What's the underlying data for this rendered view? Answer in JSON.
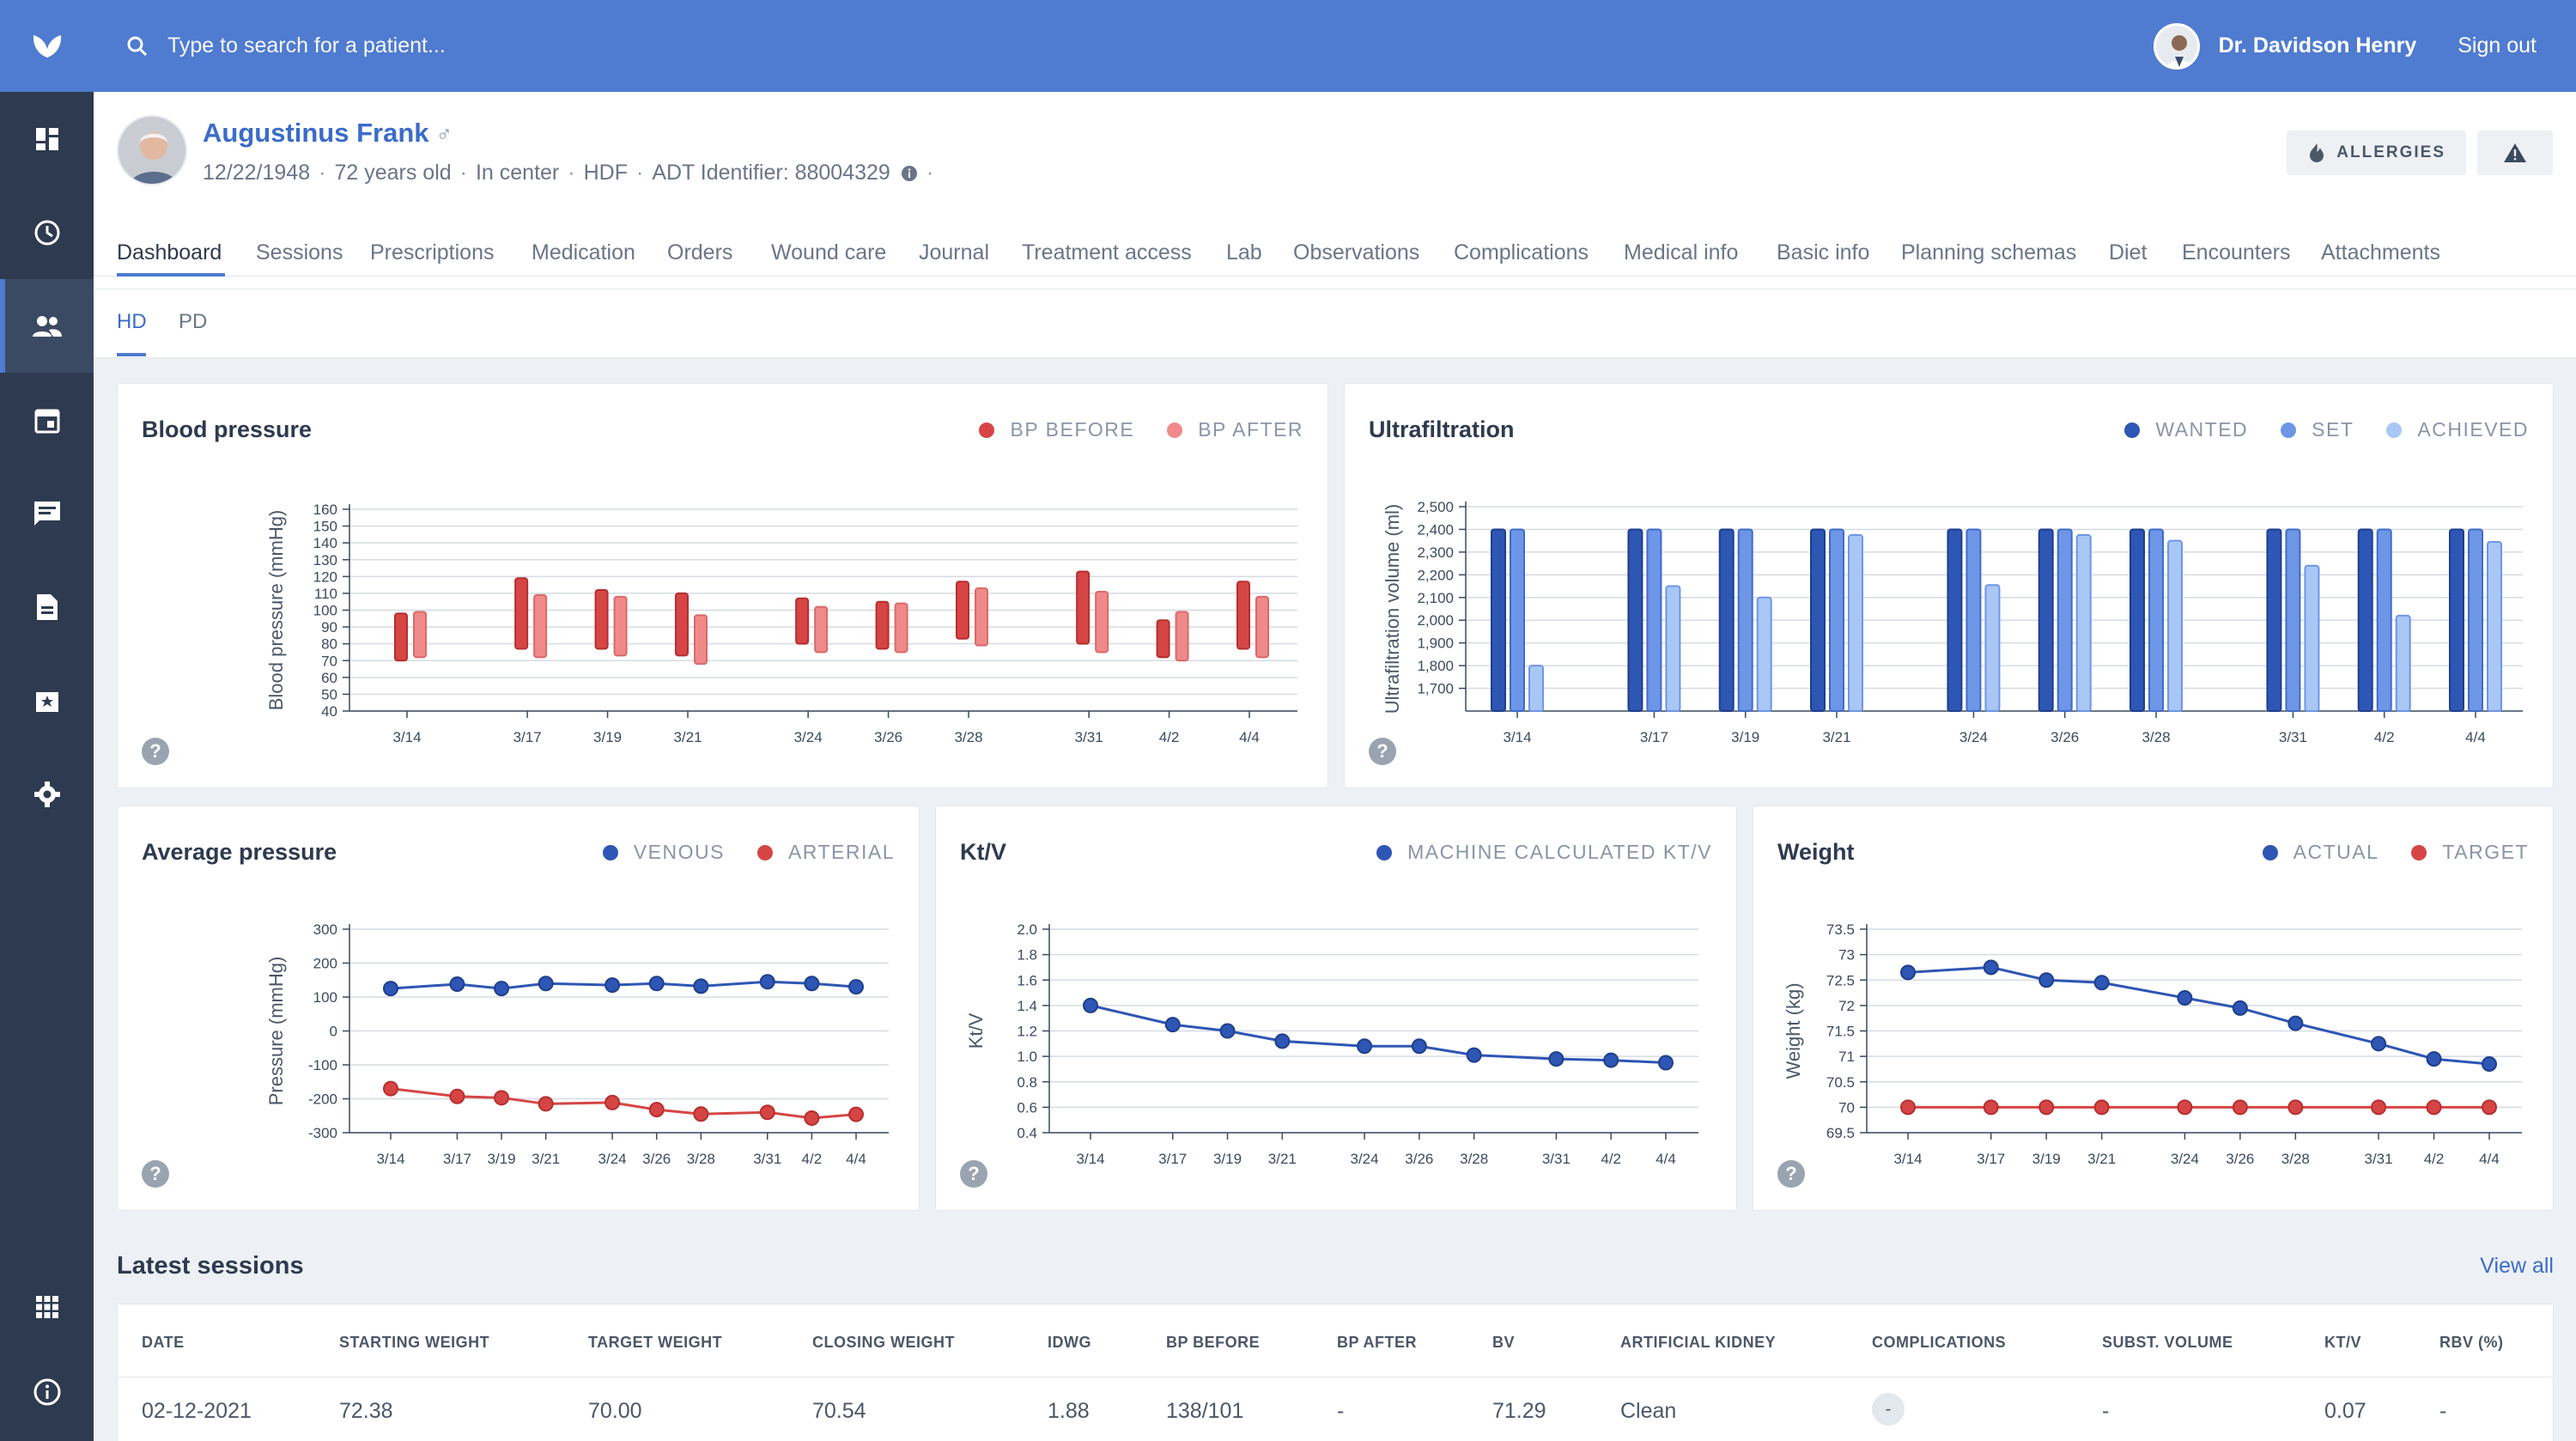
{
  "search": {
    "placeholder": "Type to search for a patient..."
  },
  "user": {
    "name": "Dr. Davidson Henry",
    "signout": "Sign out"
  },
  "patient": {
    "name": "Augustinus Frank",
    "sex_symbol": "♂",
    "dob": "12/22/1948",
    "age": "72 years old",
    "location": "In center",
    "modality": "HDF",
    "adt": "ADT Identifier: 88004329",
    "allergies_label": "ALLERGIES"
  },
  "tabs": [
    "Dashboard",
    "Sessions",
    "Prescriptions",
    "Medication",
    "Orders",
    "Wound care",
    "Journal",
    "Treatment access",
    "Lab",
    "Observations",
    "Complications",
    "Medical info",
    "Basic info",
    "Planning schemas",
    "Diet",
    "Encounters",
    "Attachments"
  ],
  "subtabs": [
    "HD",
    "PD"
  ],
  "colors": {
    "accent": "#4f7bd0",
    "sidebar": "#2e3a4f",
    "red": "#d64545",
    "red_light": "#f08a8a",
    "blue_dark": "#2e56b4",
    "blue_mid": "#6e96e6",
    "blue_light": "#a9c7f5"
  },
  "chart_data": [
    {
      "id": "bp",
      "type": "bar",
      "title": "Blood pressure",
      "ylabel": "Blood pressure (mmHg)",
      "ylim": [
        40,
        160
      ],
      "yticks": [
        40,
        50,
        60,
        70,
        80,
        90,
        100,
        110,
        120,
        130,
        140,
        150,
        160
      ],
      "categories": [
        "3/14",
        "3/17",
        "3/19",
        "3/21",
        "3/24",
        "3/26",
        "3/28",
        "3/31",
        "4/2",
        "4/4"
      ],
      "series": [
        {
          "name": "BP BEFORE",
          "low": [
            70,
            77,
            77,
            73,
            80,
            77,
            83,
            80,
            72,
            77
          ],
          "high": [
            98,
            119,
            112,
            110,
            107,
            105,
            117,
            123,
            94,
            117
          ]
        },
        {
          "name": "BP AFTER",
          "low": [
            72,
            72,
            73,
            68,
            75,
            75,
            79,
            75,
            70,
            72
          ],
          "high": [
            99,
            109,
            108,
            97,
            102,
            104,
            113,
            111,
            99,
            108
          ]
        }
      ]
    },
    {
      "id": "uf",
      "type": "bar",
      "title": "Ultrafiltration",
      "ylabel": "Ultrafiltration volume (ml)",
      "ylim": [
        1600,
        2500
      ],
      "yticks": [
        1700,
        1800,
        1900,
        2000,
        2100,
        2200,
        2300,
        2400,
        2500
      ],
      "ytick_labels": [
        "1,700",
        "1,800",
        "1,900",
        "2,000",
        "2,100",
        "2,200",
        "2,300",
        "2,400",
        "2,500"
      ],
      "categories": [
        "3/14",
        "3/17",
        "3/19",
        "3/21",
        "3/24",
        "3/26",
        "3/28",
        "3/31",
        "4/2",
        "4/4"
      ],
      "series": [
        {
          "name": "WANTED",
          "values": [
            2400,
            2400,
            2400,
            2400,
            2400,
            2400,
            2400,
            2400,
            2400,
            2400
          ]
        },
        {
          "name": "SET",
          "values": [
            2400,
            2400,
            2400,
            2400,
            2400,
            2400,
            2400,
            2400,
            2400,
            2400
          ]
        },
        {
          "name": "ACHIEVED",
          "values": [
            1800,
            2150,
            2100,
            2375,
            2155,
            2375,
            2350,
            2240,
            2020,
            2345
          ]
        }
      ]
    },
    {
      "id": "ap",
      "type": "line",
      "title": "Average pressure",
      "ylabel": "Pressure (mmHg)",
      "ylim": [
        -300,
        300
      ],
      "yticks": [
        -300,
        -200,
        -100,
        0,
        100,
        200,
        300
      ],
      "categories": [
        "3/14",
        "3/17",
        "3/19",
        "3/21",
        "3/24",
        "3/26",
        "3/28",
        "3/31",
        "4/2",
        "4/4"
      ],
      "series": [
        {
          "name": "VENOUS",
          "values": [
            125,
            138,
            125,
            140,
            135,
            140,
            132,
            145,
            140,
            130
          ]
        },
        {
          "name": "ARTERIAL",
          "values": [
            -170,
            -193,
            -197,
            -215,
            -211,
            -232,
            -245,
            -240,
            -257,
            -246
          ]
        }
      ]
    },
    {
      "id": "ktv",
      "type": "line",
      "title": "Kt/V",
      "ylabel": "Kt/V",
      "ylim": [
        0.4,
        2.0
      ],
      "yticks": [
        0.4,
        0.6,
        0.8,
        1.0,
        1.2,
        1.4,
        1.6,
        1.8,
        2.0
      ],
      "ytick_labels": [
        "0.4",
        "0.6",
        "0.8",
        "1.0",
        "1.2",
        "1.4",
        "1.6",
        "1.8",
        "2.0"
      ],
      "categories": [
        "3/14",
        "3/17",
        "3/19",
        "3/21",
        "3/24",
        "3/26",
        "3/28",
        "3/31",
        "4/2",
        "4/4"
      ],
      "series": [
        {
          "name": "MACHINE CALCULATED KT/V",
          "values": [
            1.4,
            1.25,
            1.2,
            1.12,
            1.08,
            1.08,
            1.01,
            0.98,
            0.97,
            0.95
          ]
        }
      ]
    },
    {
      "id": "wt",
      "type": "line",
      "title": "Weight",
      "ylabel": "Weight (kg)",
      "ylim": [
        69.5,
        73.5
      ],
      "yticks": [
        69.5,
        70,
        70.5,
        71,
        71.5,
        72,
        72.5,
        73,
        73.5
      ],
      "categories": [
        "3/14",
        "3/17",
        "3/19",
        "3/21",
        "3/24",
        "3/26",
        "3/28",
        "3/31",
        "4/2",
        "4/4"
      ],
      "series": [
        {
          "name": "ACTUAL",
          "values": [
            72.65,
            72.75,
            72.5,
            72.45,
            72.15,
            71.95,
            71.65,
            71.25,
            70.95,
            70.85
          ]
        },
        {
          "name": "TARGET",
          "values": [
            70,
            70,
            70,
            70,
            70,
            70,
            70,
            70,
            70,
            70
          ]
        }
      ]
    }
  ],
  "sessions": {
    "title": "Latest sessions",
    "view_all": "View all",
    "headers": [
      "DATE",
      "STARTING WEIGHT",
      "TARGET WEIGHT",
      "CLOSING WEIGHT",
      "IDWG",
      "BP BEFORE",
      "BP AFTER",
      "BV",
      "ARTIFICIAL KIDNEY",
      "COMPLICATIONS",
      "SUBST. VOLUME",
      "KT/V",
      "RBV (%)"
    ],
    "rows": [
      [
        "02-12-2021",
        "72.38",
        "70.00",
        "70.54",
        "1.88",
        "138/101",
        "-",
        "71.29",
        "Clean",
        "-",
        "-",
        "0.07",
        "-"
      ]
    ]
  }
}
